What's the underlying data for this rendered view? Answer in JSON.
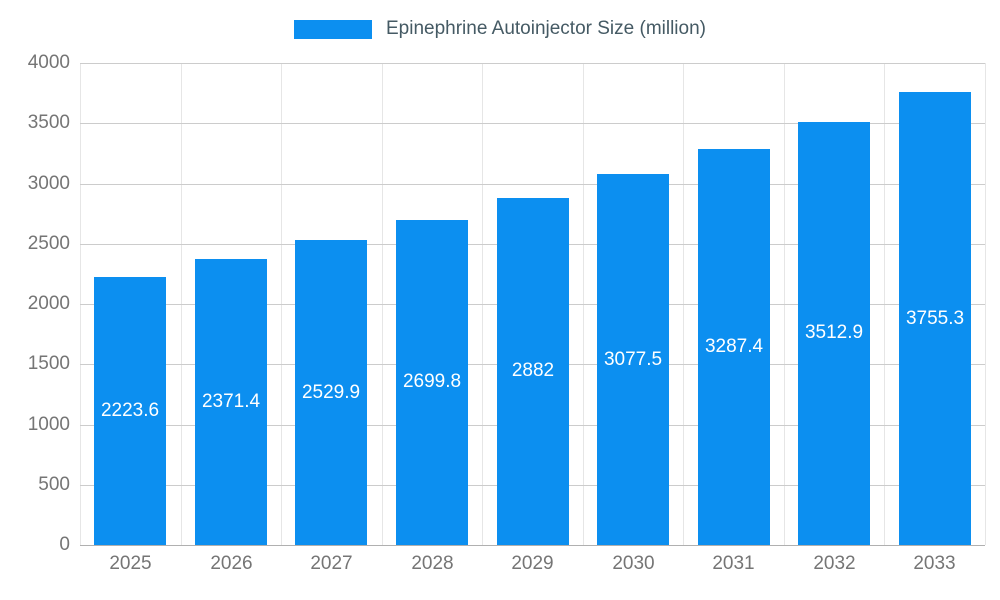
{
  "chart_data": {
    "type": "bar",
    "title": "",
    "legend_label": "Epinephrine Autoinjector Size (million)",
    "legend_position": "top",
    "categories": [
      "2025",
      "2026",
      "2027",
      "2028",
      "2029",
      "2030",
      "2031",
      "2032",
      "2033"
    ],
    "series": [
      {
        "name": "Epinephrine Autoinjector Size (million)",
        "values": [
          2223.6,
          2371.4,
          2529.9,
          2699.8,
          2882,
          3077.5,
          3287.4,
          3512.9,
          3755.3
        ],
        "value_labels": [
          "2223.6",
          "2371.4",
          "2529.9",
          "2699.8",
          "2882",
          "3077.5",
          "3287.4",
          "3512.9",
          "3755.3"
        ]
      }
    ],
    "xlabel": "",
    "ylabel": "",
    "ylim": [
      0,
      4000
    ],
    "yticks": [
      0,
      500,
      1000,
      1500,
      2000,
      2500,
      3000,
      3500,
      4000
    ],
    "ytick_labels": [
      "0",
      "500",
      "1000",
      "1500",
      "2000",
      "2500",
      "3000",
      "3500",
      "4000"
    ],
    "grid": "on"
  },
  "colors": {
    "bar": "#0c8ff0",
    "legend_text": "#455a64",
    "tick_text": "#757575",
    "hgrid": "#cccccc",
    "vgrid": "#e6e6e6",
    "baseline": "#b0b0b0",
    "annotation_text": "#ffffff",
    "background": "#ffffff"
  }
}
